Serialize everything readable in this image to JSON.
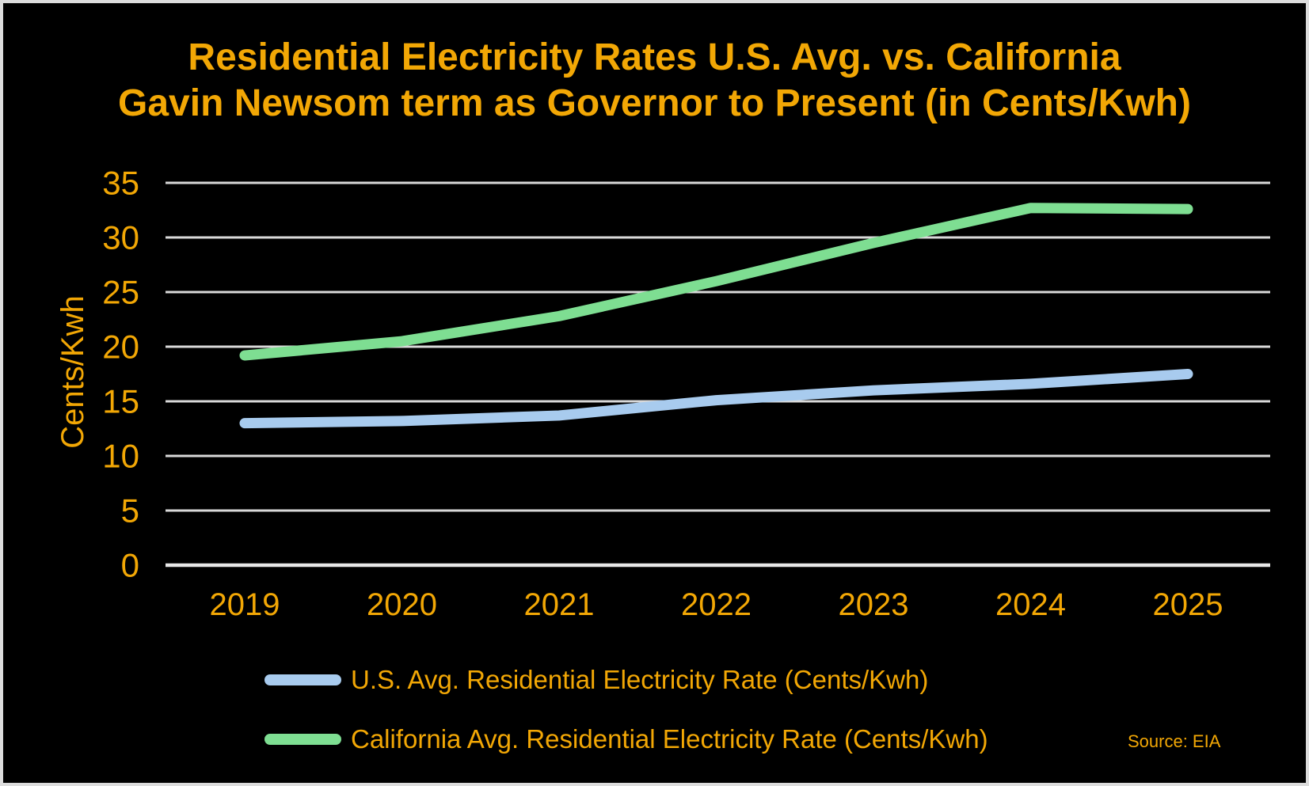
{
  "colors": {
    "background": "#000000",
    "frame_border": "#DCDCDC",
    "gold_text": "#F2A705",
    "gridline": "#D9D9D9",
    "axis_line": "#E8E8E8"
  },
  "chart_data": {
    "type": "line",
    "title": "Residential Electricity Rates U.S. Avg. vs. California",
    "subtitle": "Gavin Newsom term as Governor to Present (in Cents/Kwh)",
    "ylabel": "Cents/Kwh",
    "xlabel": "",
    "x": [
      "2019",
      "2020",
      "2021",
      "2022",
      "2023",
      "2024",
      "2025"
    ],
    "ylim": [
      0,
      35
    ],
    "yticks": [
      0,
      5,
      10,
      15,
      20,
      25,
      30,
      35
    ],
    "grid": true,
    "legend_position": "bottom-left",
    "series": [
      {
        "name": "U.S. Avg. Residential Electricity Rate (Cents/Kwh)",
        "color": "#A8CBEE",
        "values": [
          13.0,
          13.2,
          13.7,
          15.1,
          16.0,
          16.6,
          17.5
        ]
      },
      {
        "name": "California Avg. Residential Electricity Rate (Cents/Kwh)",
        "color": "#7EDE92",
        "values": [
          19.2,
          20.5,
          22.8,
          26.0,
          29.5,
          32.7,
          32.6
        ]
      }
    ]
  },
  "source_note": "Source: EIA"
}
